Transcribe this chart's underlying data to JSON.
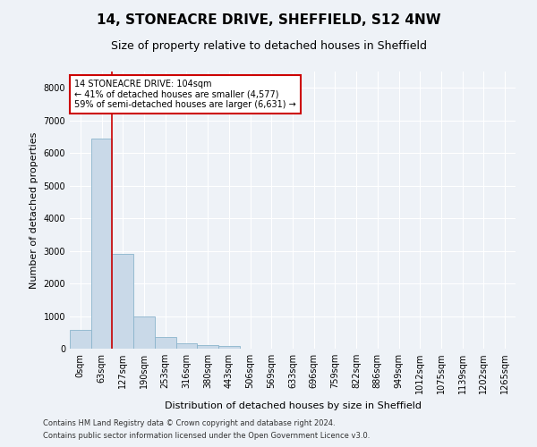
{
  "title": "14, STONEACRE DRIVE, SHEFFIELD, S12 4NW",
  "subtitle": "Size of property relative to detached houses in Sheffield",
  "xlabel": "Distribution of detached houses by size in Sheffield",
  "ylabel": "Number of detached properties",
  "bar_color": "#c9d9e8",
  "bar_edge_color": "#8ab4cc",
  "vline_color": "#cc0000",
  "annotation_title": "14 STONEACRE DRIVE: 104sqm",
  "annotation_line1": "← 41% of detached houses are smaller (4,577)",
  "annotation_line2": "59% of semi-detached houses are larger (6,631) →",
  "annotation_box_color": "#ffffff",
  "annotation_box_edge_color": "#cc0000",
  "categories": [
    "0sqm",
    "63sqm",
    "127sqm",
    "190sqm",
    "253sqm",
    "316sqm",
    "380sqm",
    "443sqm",
    "506sqm",
    "569sqm",
    "633sqm",
    "696sqm",
    "759sqm",
    "822sqm",
    "886sqm",
    "949sqm",
    "1012sqm",
    "1075sqm",
    "1139sqm",
    "1202sqm",
    "1265sqm"
  ],
  "values": [
    570,
    6430,
    2920,
    990,
    360,
    170,
    110,
    90,
    0,
    0,
    0,
    0,
    0,
    0,
    0,
    0,
    0,
    0,
    0,
    0,
    0
  ],
  "ylim": [
    0,
    8500
  ],
  "yticks": [
    0,
    1000,
    2000,
    3000,
    4000,
    5000,
    6000,
    7000,
    8000
  ],
  "footer1": "Contains HM Land Registry data © Crown copyright and database right 2024.",
  "footer2": "Contains public sector information licensed under the Open Government Licence v3.0.",
  "background_color": "#eef2f7",
  "grid_color": "#ffffff",
  "title_fontsize": 11,
  "subtitle_fontsize": 9,
  "axis_fontsize": 8,
  "tick_fontsize": 7,
  "footer_fontsize": 6,
  "figsize": [
    6.0,
    5.0
  ],
  "dpi": 100
}
